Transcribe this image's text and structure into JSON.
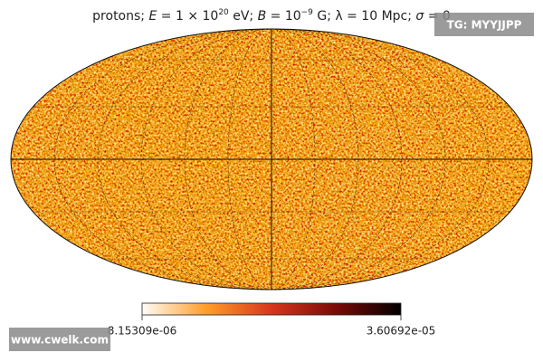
{
  "chart_data": {
    "type": "mollweide-map",
    "title_parts": [
      "protons; ",
      "E",
      " = 1 × 10",
      "20",
      " eV; ",
      "B",
      " = 10",
      "−9",
      " G; λ = 10 Mpc; ",
      "σ",
      " = 0"
    ],
    "colorbar": {
      "lim": [
        8.15309e-06,
        3.60692e-05
      ],
      "ticks": [
        {
          "value": 8.15309e-06,
          "label": "8.15309e-06"
        },
        {
          "value": 3.60692e-05,
          "label": "3.60692e-05"
        }
      ],
      "colors": [
        "#fffdf8",
        "#ff9d28",
        "#d8361c",
        "#7a0a08",
        "#000000"
      ]
    }
  },
  "watermarks": {
    "top_right": "TG: MYYJJPP",
    "bottom_left": "www.cwelk.com"
  }
}
